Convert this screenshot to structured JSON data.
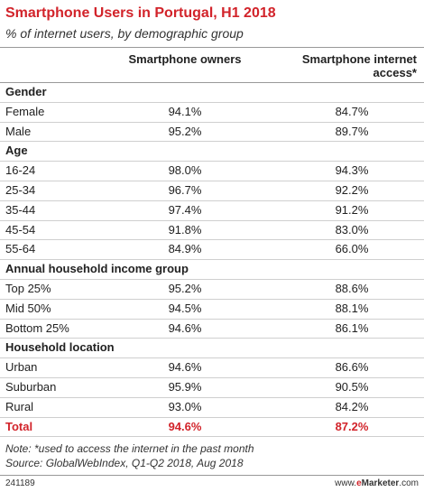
{
  "header": {
    "title": "Smartphone Users in Portugal, H1 2018",
    "subtitle": "% of internet users, by demographic group"
  },
  "table": {
    "columns": [
      "Smartphone owners",
      "Smartphone internet access*"
    ],
    "sections": [
      {
        "label": "Gender",
        "rows": [
          [
            "Female",
            "94.1%",
            "84.7%"
          ],
          [
            "Male",
            "95.2%",
            "89.7%"
          ]
        ]
      },
      {
        "label": "Age",
        "rows": [
          [
            "16-24",
            "98.0%",
            "94.3%"
          ],
          [
            "25-34",
            "96.7%",
            "92.2%"
          ],
          [
            "35-44",
            "97.4%",
            "91.2%"
          ],
          [
            "45-54",
            "91.8%",
            "83.0%"
          ],
          [
            "55-64",
            "84.9%",
            "66.0%"
          ]
        ]
      },
      {
        "label": "Annual household income group",
        "rows": [
          [
            "Top 25%",
            "95.2%",
            "88.6%"
          ],
          [
            "Mid 50%",
            "94.5%",
            "88.1%"
          ],
          [
            "Bottom 25%",
            "94.6%",
            "86.1%"
          ]
        ]
      },
      {
        "label": "Household location",
        "rows": [
          [
            "Urban",
            "94.6%",
            "86.6%"
          ],
          [
            "Suburban",
            "95.9%",
            "90.5%"
          ],
          [
            "Rural",
            "93.0%",
            "84.2%"
          ]
        ]
      }
    ],
    "total": [
      "Total",
      "94.6%",
      "87.2%"
    ]
  },
  "notes": [
    "Note: *used to access the internet in the past month",
    "Source: GlobalWebIndex, Q1-Q2 2018, Aug 2018"
  ],
  "footer": {
    "id": "241189",
    "brand": [
      "www.",
      "e",
      "Marketer",
      ".com"
    ]
  }
}
